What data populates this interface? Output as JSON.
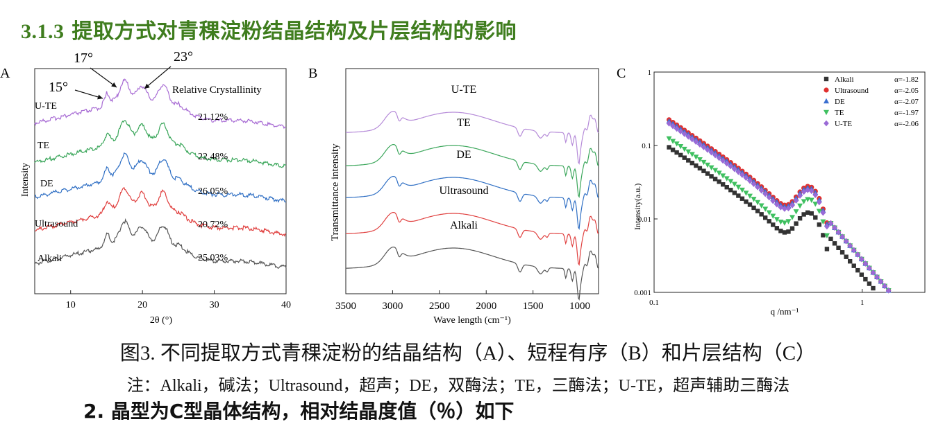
{
  "heading": {
    "number": "3.1.3",
    "title": "提取方式对青稞淀粉结晶结构及片层结构的影响"
  },
  "caption": "图3. 不同提取方式青稞淀粉的结晶结构（A）、短程有序（B）和片层结构（C）",
  "note": "注：Alkali，碱法；Ultrasound，超声；DE，双酶法；TE，三酶法；U-TE，超声辅助三酶法",
  "cut_text": "2.  晶型为C型晶体结构，相对结晶度值（％）如下",
  "chart_data": [
    {
      "panel_label": "A",
      "type": "line",
      "xlabel": "2θ (°)",
      "ylabel": "Intensity",
      "xlim": [
        5,
        40
      ],
      "xticks": [
        10,
        20,
        30,
        40
      ],
      "annotation_title": "Relative Crystallinity",
      "peak_labels": [
        "15°",
        "17°",
        "23°"
      ],
      "series": [
        {
          "name": "U-TE",
          "color": "#a86cd4",
          "crystallinity": "21.12%"
        },
        {
          "name": "TE",
          "color": "#3aa65a",
          "crystallinity": "22.48%"
        },
        {
          "name": "DE",
          "color": "#2f6fc4",
          "crystallinity": "26.05%"
        },
        {
          "name": "Ultrasound",
          "color": "#e0403f",
          "crystallinity": "20.72%"
        },
        {
          "name": "Alkali",
          "color": "#555555",
          "crystallinity": "25.03%"
        }
      ]
    },
    {
      "panel_label": "B",
      "type": "line",
      "xlabel": "Wave length (cm⁻¹)",
      "ylabel": "Transmittance intensity",
      "xlim": [
        3500,
        800
      ],
      "xticks": [
        3500,
        3000,
        2500,
        2000,
        1500,
        1000
      ],
      "series": [
        {
          "name": "U-TE",
          "color": "#b58ad8"
        },
        {
          "name": "TE",
          "color": "#3aa65a"
        },
        {
          "name": "DE",
          "color": "#2f6fc4"
        },
        {
          "name": "Ultrasound",
          "color": "#e0403f"
        },
        {
          "name": "Alkali",
          "color": "#555555"
        }
      ]
    },
    {
      "panel_label": "C",
      "type": "scatter",
      "xlabel": "q /nm⁻¹",
      "ylabel": "Intensity(a.u.)",
      "xscale": "log",
      "yscale": "log",
      "xlim": [
        0.1,
        2
      ],
      "ylim": [
        0.001,
        1
      ],
      "xtick_labels": [
        "0.1",
        "1"
      ],
      "ytick_labels": [
        "0.001",
        "0.01",
        "0.1",
        "1"
      ],
      "legend_position": "top-right",
      "series": [
        {
          "name": "Alkali",
          "alpha": "α=-1.82",
          "color": "#333333",
          "marker": "square",
          "base": 0.095
        },
        {
          "name": "Ultrasound",
          "alpha": "α=-2.05",
          "color": "#e0302f",
          "marker": "circle",
          "base": 0.225
        },
        {
          "name": "DE",
          "alpha": "α=-2.07",
          "color": "#3a6fd0",
          "marker": "triangle-up",
          "base": 0.215
        },
        {
          "name": "TE",
          "alpha": "α=-1.97",
          "color": "#3fc060",
          "marker": "triangle-down",
          "base": 0.125
        },
        {
          "name": "U-TE",
          "alpha": "α=-2.06",
          "color": "#9a6ad6",
          "marker": "diamond",
          "base": 0.2
        }
      ]
    }
  ]
}
